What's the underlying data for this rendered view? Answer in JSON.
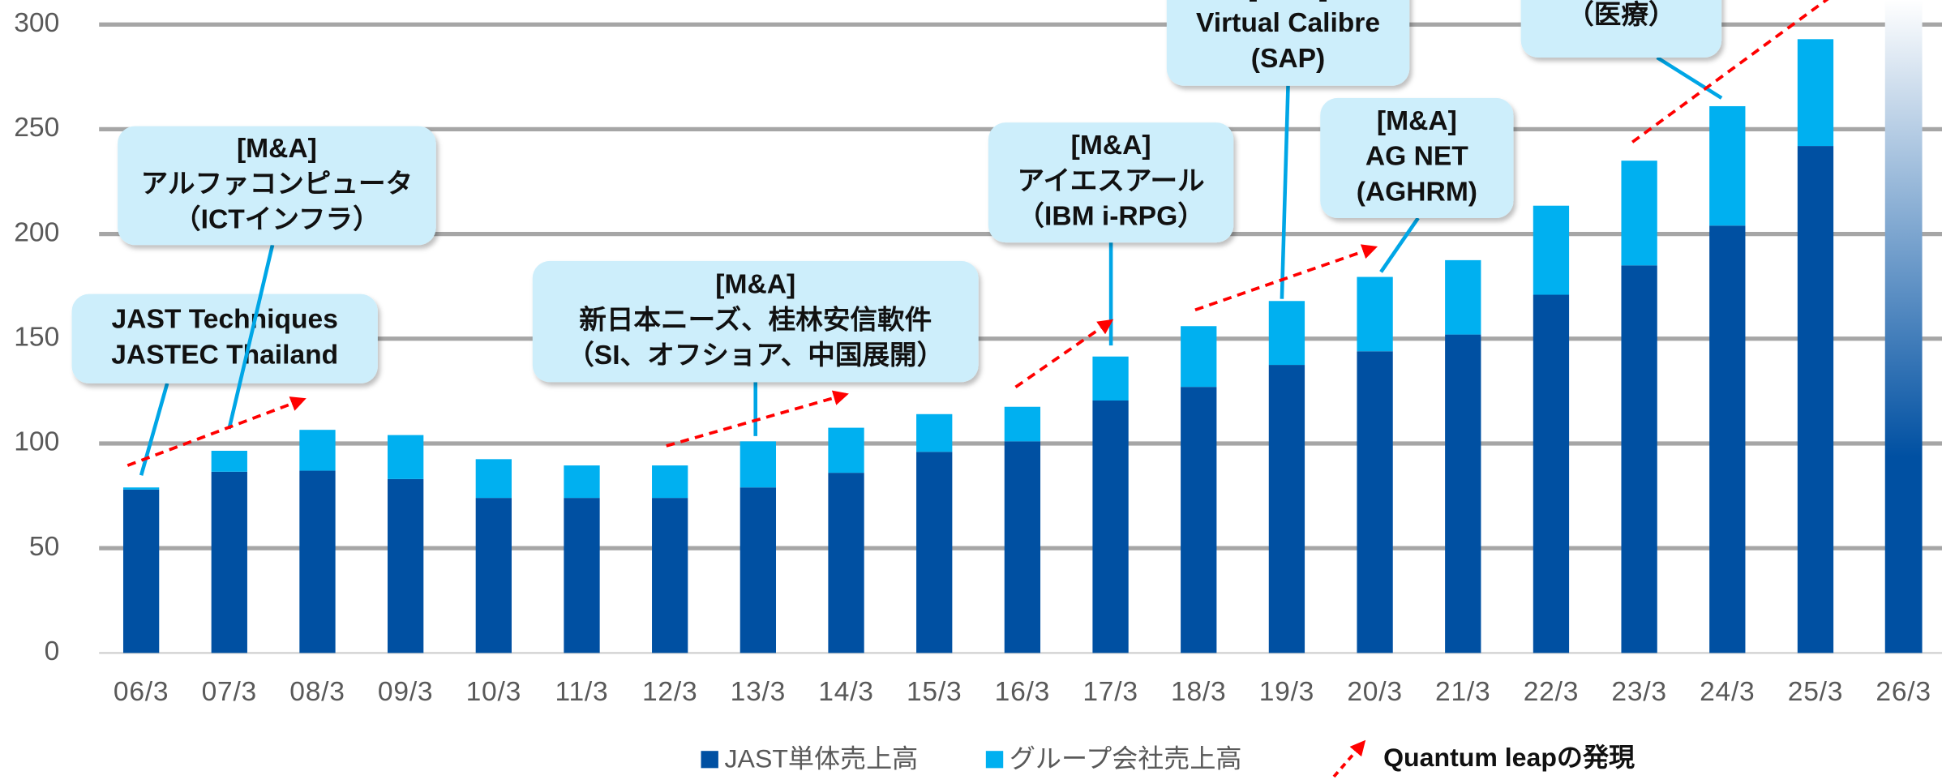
{
  "chart_data": {
    "type": "bar",
    "stacked": true,
    "categories": [
      "06/3",
      "07/3",
      "08/3",
      "09/3",
      "10/3",
      "11/3",
      "12/3",
      "13/3",
      "14/3",
      "15/3",
      "16/3",
      "17/3",
      "18/3",
      "19/3",
      "20/3",
      "21/3",
      "22/3",
      "23/3",
      "24/3",
      "25/3",
      "26/3"
    ],
    "series": [
      {
        "name": "JAST単体売上高",
        "color": "#0050a2",
        "values": [
          78,
          86.5,
          87,
          83,
          74,
          74,
          74,
          79,
          86,
          96,
          101,
          120.5,
          127,
          137.5,
          144,
          152,
          171,
          185,
          204,
          242,
          null
        ]
      },
      {
        "name": "グループ会社売上高",
        "color": "#00b0f0",
        "values": [
          1,
          10,
          19.5,
          21,
          18.5,
          15.5,
          15.5,
          22,
          21.5,
          18,
          16.5,
          21,
          29,
          30.5,
          35.5,
          35.5,
          42.5,
          50,
          57,
          51,
          null
        ]
      }
    ],
    "ylim": [
      0,
      300
    ],
    "yticks": [
      0,
      50,
      100,
      150,
      200,
      250,
      300
    ],
    "grid": true,
    "legend_extra": "Quantum leapの発現",
    "annotations": [
      {
        "lines": [
          "JAST Techniques",
          "JASTEC Thailand"
        ]
      },
      {
        "lines": [
          "[M&A]",
          "アルファコンピュータ",
          "（ICTインフラ）"
        ]
      },
      {
        "lines": [
          "[M&A]",
          "新日本ニーズ、桂林安信軟件",
          "（SI、オフショア、中国展開）"
        ]
      },
      {
        "lines": [
          "[M&A]",
          "アイエスアール",
          "（IBM i-RPG）"
        ]
      },
      {
        "lines": [
          "[M&A]",
          "Virtual Calibre",
          "(SAP)"
        ]
      },
      {
        "lines": [
          "[M&A]",
          "AG NET",
          "(AGHRM)"
        ]
      },
      {
        "lines": [
          "（医療）"
        ]
      }
    ]
  }
}
